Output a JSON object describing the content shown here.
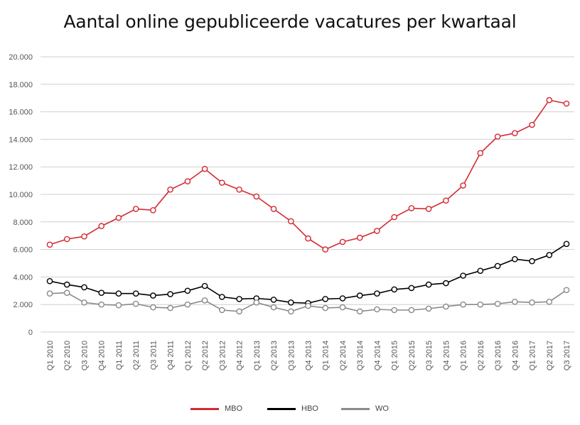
{
  "chart_data": {
    "type": "line",
    "title": "Aantal online gepubliceerde vacatures per kwartaal",
    "categories": [
      "Q1 2010",
      "Q2 2010",
      "Q3 2010",
      "Q4 2010",
      "Q1 2011",
      "Q2 2011",
      "Q3 2011",
      "Q4 2011",
      "Q1 2012",
      "Q2 2012",
      "Q3 2012",
      "Q4 2012",
      "Q1 2013",
      "Q2 2013",
      "Q3 2013",
      "Q4 2013",
      "Q1 2014",
      "Q2 2014",
      "Q3 2014",
      "Q4 2014",
      "Q1 2015",
      "Q2 2015",
      "Q3 2015",
      "Q4 2015",
      "Q1 2016",
      "Q2 2016",
      "Q3 2016",
      "Q4 2016",
      "Q1 2017",
      "Q2 2017",
      "Q3 2017"
    ],
    "y_ticks": [
      "0",
      "2.000",
      "4.000",
      "6.000",
      "8.000",
      "10.000",
      "12.000",
      "14.000",
      "16.000",
      "18.000",
      "20.000"
    ],
    "ylim": [
      0,
      20000
    ],
    "grid": true,
    "legend_position": "bottom",
    "series": [
      {
        "name": "MBO",
        "color": "#d42a33",
        "values": [
          6350,
          6750,
          6950,
          7700,
          8300,
          8950,
          8850,
          10350,
          10950,
          11850,
          10850,
          10350,
          9850,
          8950,
          8050,
          6800,
          6000,
          6550,
          6850,
          7350,
          8350,
          9000,
          8950,
          9550,
          10650,
          13000,
          14200,
          14450,
          15050,
          16850,
          16600
        ]
      },
      {
        "name": "HBO",
        "color": "#000000",
        "values": [
          3700,
          3450,
          3250,
          2850,
          2800,
          2800,
          2650,
          2750,
          3000,
          3350,
          2550,
          2400,
          2450,
          2350,
          2150,
          2100,
          2400,
          2450,
          2650,
          2800,
          3100,
          3200,
          3450,
          3550,
          4100,
          4450,
          4800,
          5300,
          5150,
          5600,
          6400
        ]
      },
      {
        "name": "WO",
        "color": "#8a8a8a",
        "values": [
          2800,
          2850,
          2150,
          2000,
          1950,
          2050,
          1800,
          1750,
          2000,
          2300,
          1600,
          1500,
          2150,
          1800,
          1500,
          1900,
          1750,
          1800,
          1500,
          1650,
          1600,
          1600,
          1700,
          1850,
          2000,
          2000,
          2050,
          2200,
          2150,
          2200,
          3050
        ]
      }
    ]
  }
}
